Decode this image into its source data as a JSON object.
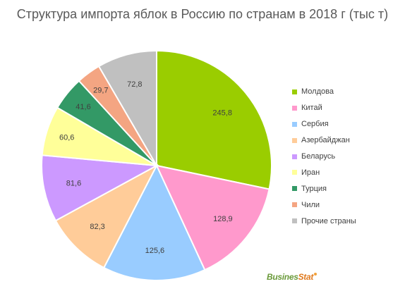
{
  "chart_data": {
    "type": "pie",
    "title": "Структура импорта яблок в Россию по странам в 2018 г (тыс т)",
    "legend_position": "right",
    "categories": [
      "Молдова",
      "Китай",
      "Сербия",
      "Азербайджан",
      "Беларусь",
      "Иран",
      "Турция",
      "Чили",
      "Прочие страны"
    ],
    "values": [
      245.8,
      128.9,
      125.6,
      82.3,
      81.6,
      60.6,
      41.6,
      29.7,
      72.8
    ],
    "value_labels": [
      "245,8",
      "128,9",
      "125,6",
      "82,3",
      "81,6",
      "60,6",
      "41,6",
      "29,7",
      "72,8"
    ],
    "colors": [
      "#9acd00",
      "#ff99cc",
      "#99ccff",
      "#ffcc99",
      "#cc99ff",
      "#ffff99",
      "#339966",
      "#f4a582",
      "#c0c0c0"
    ]
  },
  "logo": {
    "main": "Busines",
    "accent": "Stat"
  }
}
